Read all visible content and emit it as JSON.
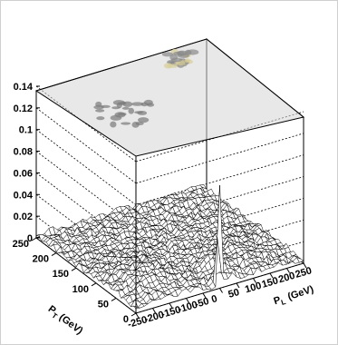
{
  "chart_data": {
    "type": "surface",
    "title": "",
    "z_ticks": [
      "0",
      "0.02",
      "0.04",
      "0.06",
      "0.08",
      "0.1",
      "0.12",
      "0.14"
    ],
    "z_range": [
      0,
      0.145
    ],
    "pt_axis": {
      "label_main": "P",
      "label_sub": "T",
      "label_unit": "(GeV)",
      "range": [
        0,
        250
      ],
      "ticks": [
        "0",
        "50",
        "100",
        "150",
        "200",
        "250"
      ]
    },
    "pl_axis": {
      "label_main": "P",
      "label_sub": "L",
      "label_unit": "(GeV)",
      "range": [
        -250,
        250
      ],
      "ticks": [
        "-250",
        "-200",
        "-150",
        "-100",
        "-50",
        "0",
        "50",
        "100",
        "150",
        "200",
        "250"
      ]
    },
    "peak": {
      "pl": 0,
      "pt": 0,
      "z": 0.095
    },
    "projection_blobs": [
      {
        "pl": -150,
        "pt": 110,
        "color": "#8c8c8c"
      },
      {
        "pl": 120,
        "pt": 200,
        "color": "#d8cf9a"
      }
    ],
    "grid": true,
    "colors": {
      "surface_fill": "#ffffff",
      "surface_line": "#000000",
      "box_top": "#d6d6d6"
    }
  }
}
